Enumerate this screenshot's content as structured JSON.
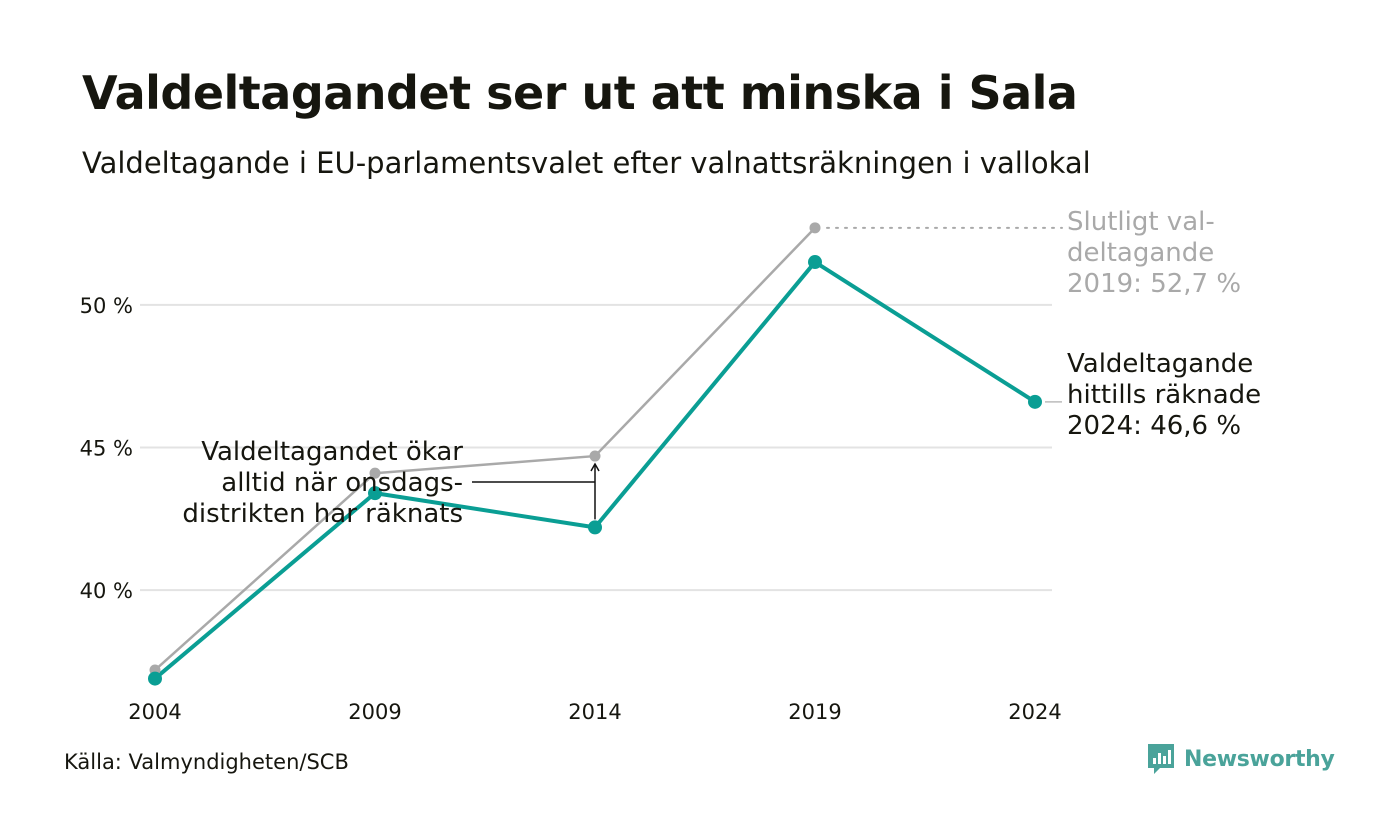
{
  "title": "Valdeltagandet ser ut att minska i Sala",
  "subtitle": "Valdeltagande i EU-parlamentsvalet efter valnattsräkningen i vallokal",
  "source": "Källa: Valmyndigheten/SCB",
  "brand": {
    "name": "Newsworthy",
    "icon": "newsworthy-logo-icon"
  },
  "colors": {
    "election_night": "#0a9e94",
    "final": "#a9a9a9",
    "grid": "#e3e3e3",
    "text": "#16160f"
  },
  "chart_data": {
    "type": "line",
    "x": [
      2004,
      2009,
      2014,
      2019,
      2024
    ],
    "x_tick_labels": [
      "2004",
      "2009",
      "2014",
      "2019",
      "2024"
    ],
    "y_ticks": [
      40,
      45,
      50
    ],
    "y_tick_labels": [
      "40 %",
      "45 %",
      "50 %"
    ],
    "ylim": [
      36.5,
      53.5
    ],
    "grid": true,
    "series": [
      {
        "values": [
          37.2,
          44.1,
          44.7,
          52.7,
          null
        ],
        "color": "#a9a9a9"
      },
      {
        "values": [
          36.9,
          43.4,
          42.2,
          51.5,
          46.6
        ],
        "color": "#0a9e94"
      }
    ],
    "annotations": {
      "final_2019": [
        "Slutligt val-",
        "deltagande",
        "2019: 52,7 %"
      ],
      "current_2024": [
        "Valdeltagande",
        "hittills räknade",
        "2024: 46,6 %"
      ],
      "wednesday": [
        "Valdeltagandet ökar",
        "alltid när onsdags-",
        "distrikten har räknats"
      ]
    }
  }
}
